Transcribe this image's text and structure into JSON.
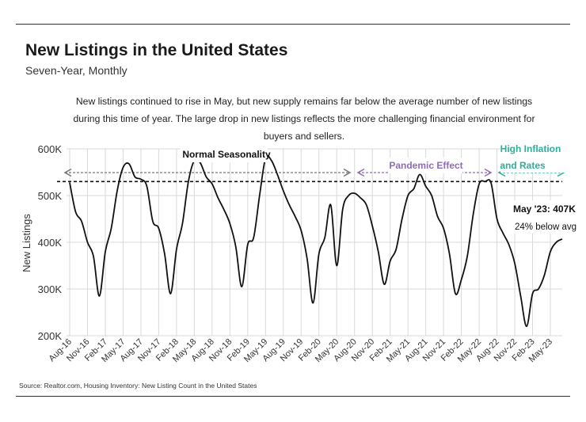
{
  "header": {
    "title": "New Listings in the United States",
    "subtitle": "Seven-Year, Monthly",
    "description": "New listings continued to rise in May, but new supply remains far below the average number of new listings during this time of year. The large drop in new listings reflects the more challenging financial environment for buyers and sellers."
  },
  "footer": {
    "source": "Source:  Realtor.com, Housing Inventory: New Listing Count in the United States"
  },
  "colors": {
    "line": "#111111",
    "grid": "#d9d9d9",
    "average": "#111111",
    "normal": "#777777",
    "pandemic": "#8e6bb5",
    "inflation": "#2fae9a"
  },
  "chart_data": {
    "type": "line",
    "ylabel": "New Listings",
    "xlabel": "",
    "ylim": [
      200000,
      600000
    ],
    "y_ticks": [
      200000,
      300000,
      400000,
      500000,
      600000
    ],
    "y_tick_labels": [
      "200K",
      "300K",
      "400K",
      "500K",
      "600K"
    ],
    "x_tick_labels": [
      "Aug-16",
      "Nov-16",
      "Feb-17",
      "May-17",
      "Aug-17",
      "Nov-17",
      "Feb-18",
      "May-18",
      "Aug-18",
      "Nov-18",
      "Feb-19",
      "May-19",
      "Aug-19",
      "Nov-19",
      "Feb-20",
      "May-20",
      "Aug-20",
      "Nov-20",
      "Feb-21",
      "May-21",
      "Aug-21",
      "Nov-21",
      "Feb-22",
      "May-22",
      "Aug-22",
      "Nov-22",
      "Feb-23",
      "May-23"
    ],
    "grid": true,
    "average_line": 530000,
    "series": [
      {
        "values": [
          528000,
          465000,
          445000,
          400000,
          370000,
          285000,
          380000,
          430000,
          510000,
          560000,
          568000,
          540000,
          535000,
          520000,
          445000,
          430000,
          375000,
          290000,
          385000,
          440000,
          530000,
          575000,
          570000,
          540000,
          525000,
          495000,
          470000,
          440000,
          390000,
          305000,
          395000,
          410000,
          500000,
          580000,
          575000,
          545000,
          510000,
          480000,
          455000,
          425000,
          365000,
          270000,
          375000,
          410000,
          480000,
          350000,
          470000,
          500000,
          505000,
          495000,
          480000,
          435000,
          380000,
          310000,
          360000,
          385000,
          450000,
          500000,
          515000,
          545000,
          520000,
          500000,
          455000,
          430000,
          375000,
          290000,
          320000,
          370000,
          460000,
          525000,
          530000,
          527000,
          450000,
          420000,
          395000,
          355000,
          285000,
          220000,
          290000,
          300000,
          330000,
          380000,
          400000,
          407000
        ]
      }
    ],
    "annotations": {
      "normal_seasonality": "Normal Seasonality",
      "pandemic_effect": "Pandemic Effect",
      "high_inflation_1": "High Inflation",
      "high_inflation_2": "and Rates",
      "callout_value": "May '23: 407K",
      "callout_note": "24% below avg"
    }
  }
}
